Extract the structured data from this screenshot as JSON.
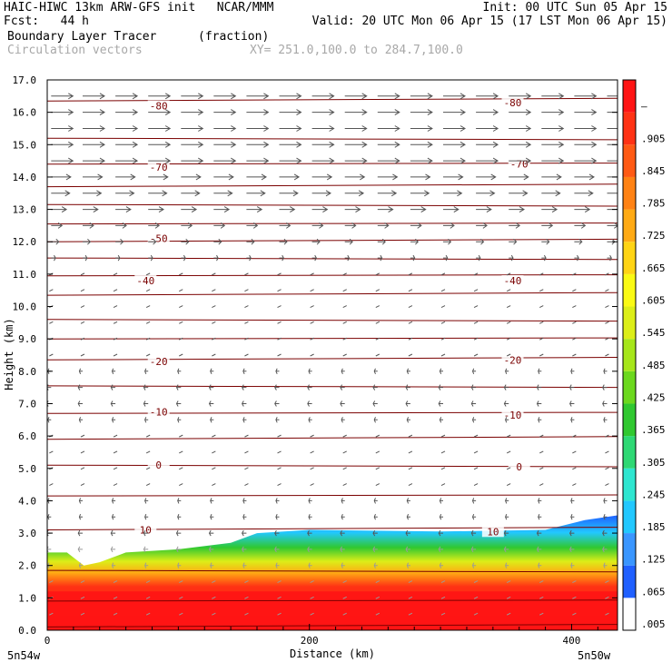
{
  "header": {
    "title_left": "HAIC-HIWC 13km ARW-GFS init   NCAR/MMM",
    "init": "Init: 00 UTC Sun 05 Apr 15",
    "fcst": "Fcst:   44 h",
    "valid": "Valid: 20 UTC Mon 06 Apr 15 (17 LST Mon 06 Apr 15)",
    "field_name": "Boundary Layer Tracer",
    "field_units": "(fraction)",
    "vector_name": "Circulation vectors",
    "xy_range": "XY= 251.0,100.0 to 284.7,100.0"
  },
  "chart_data": {
    "type": "heatmap",
    "xlabel": "Distance (km)",
    "ylabel": "Height (km)",
    "xlim": [
      0,
      435
    ],
    "ylim": [
      0,
      17
    ],
    "x_ticks": [
      "0",
      "200",
      "400"
    ],
    "x_tick_values": [
      0,
      200,
      400
    ],
    "y_ticks": [
      "0.0",
      "1.0",
      "2.0",
      "3.0",
      "4.0",
      "5.0",
      "6.0",
      "7.0",
      "8.0",
      "9.0",
      "10.0",
      "11.0",
      "12.0",
      "13.0",
      "14.0",
      "15.0",
      "16.0",
      "17.0"
    ],
    "endpoints": {
      "left": "5n54w",
      "right": "5n50w"
    },
    "colorbar": {
      "labels": [
        ".005",
        ".065",
        ".125",
        ".185",
        ".245",
        ".305",
        ".365",
        ".425",
        ".485",
        ".545",
        ".605",
        ".665",
        ".725",
        ".785",
        ".845",
        ".905",
        "–"
      ],
      "colors": [
        "#ffffff",
        "#2060ff",
        "#3a96ff",
        "#22c8ff",
        "#2ee6d0",
        "#2ed874",
        "#30c830",
        "#6cd81e",
        "#a6e61a",
        "#dcee18",
        "#fafa14",
        "#ffd414",
        "#ffaa14",
        "#ff8214",
        "#ff5a14",
        "#ff3214",
        "#ff1414"
      ]
    },
    "tracer_top_height": [
      {
        "x": 0,
        "z": 2.4
      },
      {
        "x": 15,
        "z": 2.4
      },
      {
        "x": 28,
        "z": 2.0
      },
      {
        "x": 40,
        "z": 2.1
      },
      {
        "x": 60,
        "z": 2.4
      },
      {
        "x": 100,
        "z": 2.5
      },
      {
        "x": 140,
        "z": 2.7
      },
      {
        "x": 160,
        "z": 3.0
      },
      {
        "x": 200,
        "z": 3.1
      },
      {
        "x": 300,
        "z": 3.05
      },
      {
        "x": 380,
        "z": 3.1
      },
      {
        "x": 410,
        "z": 3.4
      },
      {
        "x": 435,
        "z": 3.55
      }
    ],
    "isotherms": [
      {
        "label": "-80",
        "z": 16.2
      },
      {
        "label": "-70",
        "z": 14.3
      },
      {
        "label": "-50",
        "z": 12.1
      },
      {
        "label": "-40",
        "z": 10.8
      },
      {
        "label": "-20",
        "z": 8.35
      },
      {
        "label": "-10",
        "z": 6.7
      },
      {
        "label": "0",
        "z": 5.1
      },
      {
        "label": "10",
        "z": 3.1
      }
    ],
    "isotherm_labels_shown": [
      {
        "label": "-80",
        "x": 85,
        "z": 16.2
      },
      {
        "label": "-80",
        "x": 355,
        "z": 16.3
      },
      {
        "label": "-70",
        "x": 85,
        "z": 14.3
      },
      {
        "label": "-70",
        "x": 360,
        "z": 14.4
      },
      {
        "label": "-50",
        "x": 85,
        "z": 12.1
      },
      {
        "label": "-40",
        "x": 75,
        "z": 10.8
      },
      {
        "label": "-40",
        "x": 355,
        "z": 10.8
      },
      {
        "label": "-20",
        "x": 85,
        "z": 8.3
      },
      {
        "label": "-20",
        "x": 355,
        "z": 8.35
      },
      {
        "label": "-10",
        "x": 85,
        "z": 6.75
      },
      {
        "label": "-10",
        "x": 355,
        "z": 6.65
      },
      {
        "label": "0",
        "x": 85,
        "z": 5.1
      },
      {
        "label": "0",
        "x": 360,
        "z": 5.05
      },
      {
        "label": "10",
        "x": 75,
        "z": 3.1
      },
      {
        "label": "10",
        "x": 340,
        "z": 3.05
      }
    ],
    "wind_vectors": {
      "description": "westerly flow strong aloft (above ~12 km), weak near-calm in mid levels, easterly/light near surface",
      "levels": [
        {
          "z": 16.5,
          "u": 1.0
        },
        {
          "z": 16.0,
          "u": 1.0
        },
        {
          "z": 15.5,
          "u": 1.0
        },
        {
          "z": 15.0,
          "u": 1.0
        },
        {
          "z": 14.5,
          "u": 1.0
        },
        {
          "z": 14.0,
          "u": 0.9
        },
        {
          "z": 13.5,
          "u": 0.85
        },
        {
          "z": 13.0,
          "u": 0.7
        },
        {
          "z": 12.5,
          "u": 0.5
        },
        {
          "z": 12.0,
          "u": 0.35
        },
        {
          "z": 11.5,
          "u": 0.2
        },
        {
          "z": 11.0,
          "u": 0.1
        },
        {
          "z": 10.5,
          "u": 0.05
        },
        {
          "z": 10.0,
          "u": 0.0
        },
        {
          "z": 9.5,
          "u": 0.0
        },
        {
          "z": 9.0,
          "u": -0.05
        },
        {
          "z": 8.5,
          "u": -0.1
        },
        {
          "z": 8.0,
          "u": -0.15
        },
        {
          "z": 7.5,
          "u": -0.2
        },
        {
          "z": 7.0,
          "u": -0.2
        },
        {
          "z": 6.5,
          "u": -0.15
        },
        {
          "z": 6.0,
          "u": -0.1
        },
        {
          "z": 5.5,
          "u": -0.1
        },
        {
          "z": 5.0,
          "u": -0.1
        },
        {
          "z": 4.5,
          "u": -0.1
        },
        {
          "z": 4.0,
          "u": -0.15
        },
        {
          "z": 3.5,
          "u": -0.15
        },
        {
          "z": 3.0,
          "u": -0.2
        },
        {
          "z": 2.5,
          "u": -0.2
        },
        {
          "z": 2.0,
          "u": -0.15
        },
        {
          "z": 1.5,
          "u": -0.1
        },
        {
          "z": 1.0,
          "u": -0.05
        },
        {
          "z": 0.5,
          "u": -0.05
        }
      ],
      "x_positions": [
        3,
        27,
        52,
        77,
        102,
        127,
        152,
        177,
        202,
        227,
        252,
        277,
        302,
        327,
        352,
        377,
        402,
        427
      ]
    }
  }
}
